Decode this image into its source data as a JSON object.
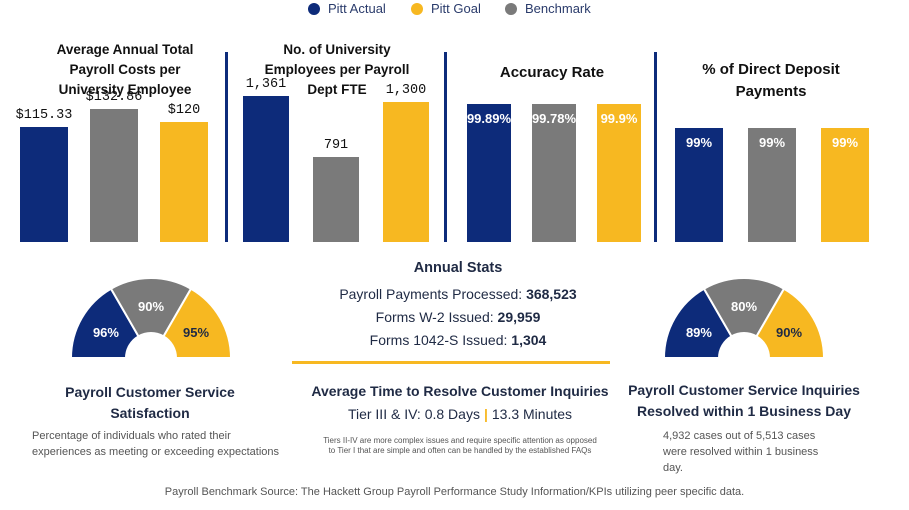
{
  "legend": [
    {
      "label": "Pitt Actual",
      "color": "#0d2b7a"
    },
    {
      "label": "Pitt Goal",
      "color": "#f7b821"
    },
    {
      "label": "Benchmark",
      "color": "#7a7a7a"
    }
  ],
  "chart_data": [
    {
      "type": "bar",
      "title": "Average Annual Total Payroll Costs per University Employee",
      "categories": [
        "Pitt Actual",
        "Benchmark",
        "Pitt Goal"
      ],
      "values": [
        115.33,
        132.86,
        120
      ],
      "labels": [
        "$115.33",
        "$132.86",
        "$120"
      ],
      "ylim": [
        0,
        240
      ]
    },
    {
      "type": "bar",
      "title": "No. of University Employees per Payroll Dept FTE",
      "categories": [
        "Pitt Actual",
        "Benchmark",
        "Pitt Goal"
      ],
      "values": [
        1361,
        791,
        1300
      ],
      "labels": [
        "1,361",
        "791",
        "1,300"
      ],
      "ylim": [
        0,
        2250
      ]
    },
    {
      "type": "bar",
      "title": "Accuracy Rate",
      "categories": [
        "Pitt Actual",
        "Benchmark",
        "Pitt Goal"
      ],
      "values": [
        99.89,
        99.78,
        99.9
      ],
      "labels": [
        "99.89%",
        "99.78%",
        "99.9%"
      ],
      "ylim": [
        0,
        100
      ]
    },
    {
      "type": "bar",
      "title": "% of Direct Deposit Payments",
      "categories": [
        "Pitt Actual",
        "Benchmark",
        "Pitt Goal"
      ],
      "values": [
        99,
        99,
        99
      ],
      "labels": [
        "99%",
        "99%",
        "99%"
      ],
      "ylim": [
        0,
        100
      ]
    },
    {
      "type": "pie",
      "title": "Payroll Customer Service Satisfaction",
      "categories": [
        "Pitt Actual",
        "Benchmark",
        "Pitt Goal"
      ],
      "values": [
        96,
        90,
        95
      ],
      "labels": [
        "96%",
        "90%",
        "95%"
      ]
    },
    {
      "type": "pie",
      "title": "Payroll Customer Service Inquiries Resolved within 1 Business Day",
      "categories": [
        "Pitt Actual",
        "Benchmark",
        "Pitt Goal"
      ],
      "values": [
        89,
        80,
        90
      ],
      "labels": [
        "89%",
        "80%",
        "90%"
      ]
    }
  ],
  "titles": {
    "cost_l1": "Average Annual Total",
    "cost_l2": "Payroll Costs per",
    "cost_l3": "University Employee",
    "emp_l1": "No. of University",
    "emp_l2": "Employees per Payroll",
    "emp_l3": "Dept FTE",
    "accuracy": "Accuracy Rate",
    "deposit_l1": "% of Direct Deposit",
    "deposit_l2": "Payments"
  },
  "satisfaction": {
    "title_l1": "Payroll Customer Service",
    "title_l2": "Satisfaction",
    "desc_l1": "Percentage of individuals who rated their",
    "desc_l2": "experiences as meeting or exceeding expectations"
  },
  "resolved": {
    "title_l1": "Payroll Customer Service Inquiries",
    "title_l2": "Resolved within 1 Business Day",
    "cases_l1": "4,932 cases out of 5,513 cases",
    "cases_l2": "were resolved within 1 business",
    "cases_l3": "day."
  },
  "annual_stats": {
    "title": "Annual Stats",
    "payments_label": "Payroll Payments Processed: ",
    "payments_value": "368,523",
    "w2_label": "Forms W-2 Issued: ",
    "w2_value": "29,959",
    "f1042_label": "Forms 1042-S Issued: ",
    "f1042_value": "1,304"
  },
  "resolve_time": {
    "title": "Average Time to Resolve Customer Inquiries",
    "tier_days": "Tier III & IV: 0.8 Days",
    "separator": "|",
    "tier_minutes": "13.3 Minutes",
    "note_l1": "Tiers II-IV are more complex issues and require specific attention as opposed",
    "note_l2": "to Tier I that are simple and often can be handled by the established FAQs"
  },
  "source": "Payroll Benchmark Source: The Hackett Group Payroll Performance Study Information/KPIs utilizing peer specific data."
}
